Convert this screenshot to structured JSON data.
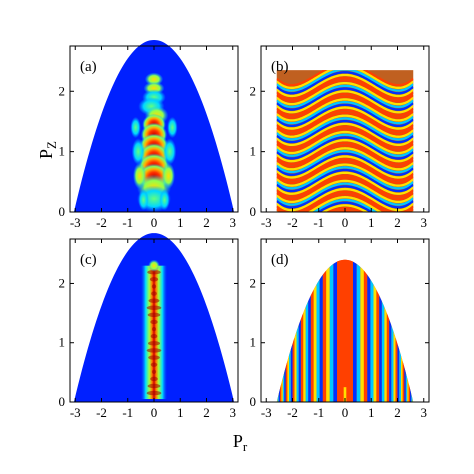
{
  "figure": {
    "xlabel_main": "P",
    "xlabel_sub": "r",
    "ylabel_main": "P",
    "ylabel_sub": "Z"
  },
  "chart_data": [
    {
      "panel": "(a)",
      "type": "heatmap",
      "xlim": [
        -3.2,
        3.2
      ],
      "ylim": [
        0,
        2.75
      ],
      "x_ticks": [
        "-3",
        "-2",
        "-1",
        "0",
        "1",
        "2",
        "3"
      ],
      "y_ticks": [
        "0",
        "1",
        "2"
      ],
      "description_shape": "parabolic dome, edge passes (±3,0) and (0,2.75)",
      "peak_region": "narrow red column near Pr=0 for Pz 0.3–1.9"
    },
    {
      "panel": "(b)",
      "type": "heatmap",
      "xlim": [
        -3.2,
        3.2
      ],
      "ylim": [
        0,
        2.75
      ],
      "x_ticks": [
        "-3",
        "-2",
        "-1",
        "0",
        "1",
        "2",
        "3"
      ],
      "y_ticks": [
        "0",
        "1",
        "2"
      ],
      "data_region_x": [
        -2.6,
        2.6
      ],
      "data_region_y": [
        0,
        2.35
      ],
      "pattern": "interference fringes, U-shaped bands"
    },
    {
      "panel": "(c)",
      "type": "heatmap",
      "xlim": [
        -3.2,
        3.2
      ],
      "ylim": [
        0,
        2.75
      ],
      "x_ticks": [
        "-3",
        "-2",
        "-1",
        "0",
        "1",
        "2",
        "3"
      ],
      "y_ticks": [
        "0",
        "1",
        "2"
      ],
      "peak_region": "narrow red column near Pr=0 for Pz 0.2–2.2"
    },
    {
      "panel": "(d)",
      "type": "heatmap",
      "xlim": [
        -3.2,
        3.2
      ],
      "ylim": [
        0,
        2.75
      ],
      "x_ticks": [
        "-3",
        "-2",
        "-1",
        "0",
        "1",
        "2",
        "3"
      ],
      "y_ticks": [
        "0",
        "1",
        "2"
      ],
      "data_region": "dome from (±2.6,0) to (0,2.4)",
      "pattern": "vertical fringes with wide red band at Pr≈0"
    }
  ]
}
